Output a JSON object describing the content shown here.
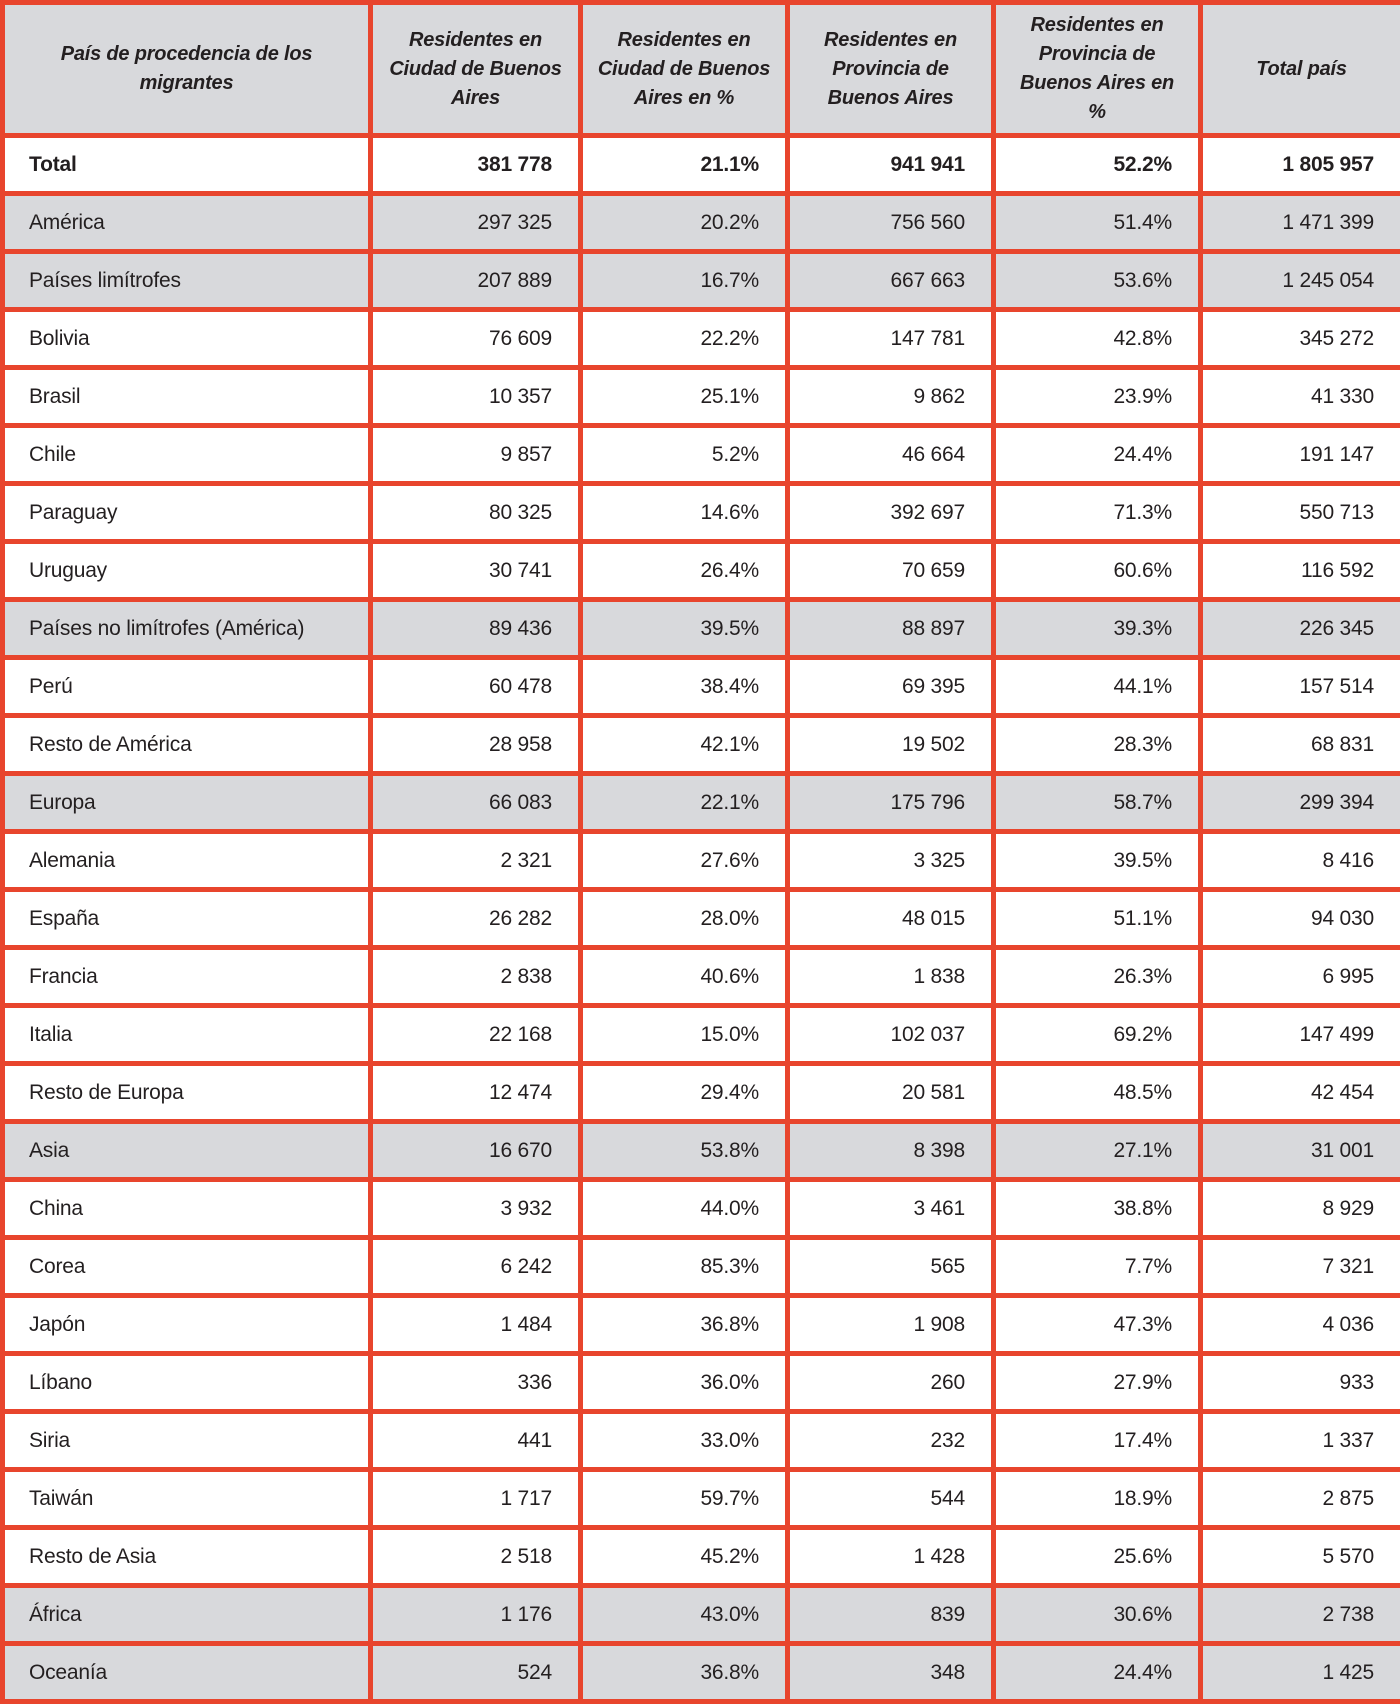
{
  "colors": {
    "border_red": "#e8452d",
    "row_gray": "#d8d9dc",
    "text": "#231f20"
  },
  "chart_data": {
    "type": "table",
    "columns": [
      "País de procedencia de los migrantes",
      "Residentes en Ciudad de Buenos Aires",
      "Residentes en Ciudad de Buenos Aires en %",
      "Residentes en Provincia de Buenos Aires",
      "Residentes en Provincia de Buenos Aires en %",
      "Total país"
    ],
    "rows": [
      {
        "label": "Total",
        "level": "total",
        "values": [
          "381 778",
          "21.1%",
          "941 941",
          "52.2%",
          "1 805 957"
        ]
      },
      {
        "label": "América",
        "level": "continent",
        "values": [
          "297 325",
          "20.2%",
          "756 560",
          "51.4%",
          "1 471 399"
        ]
      },
      {
        "label": "Países limítrofes",
        "level": "group",
        "values": [
          "207 889",
          "16.7%",
          "667 663",
          "53.6%",
          "1 245 054"
        ]
      },
      {
        "label": "Bolivia",
        "level": "country",
        "values": [
          "76 609",
          "22.2%",
          "147 781",
          "42.8%",
          "345 272"
        ]
      },
      {
        "label": "Brasil",
        "level": "country",
        "values": [
          "10 357",
          "25.1%",
          "9 862",
          "23.9%",
          "41 330"
        ]
      },
      {
        "label": "Chile",
        "level": "country",
        "values": [
          "9 857",
          "5.2%",
          "46 664",
          "24.4%",
          "191 147"
        ]
      },
      {
        "label": "Paraguay",
        "level": "country",
        "values": [
          "80 325",
          "14.6%",
          "392 697",
          "71.3%",
          "550 713"
        ]
      },
      {
        "label": "Uruguay",
        "level": "country",
        "values": [
          "30 741",
          "26.4%",
          "70 659",
          "60.6%",
          "116 592"
        ]
      },
      {
        "label": "Países no limítrofes (América)",
        "level": "group",
        "values": [
          "89 436",
          "39.5%",
          "88 897",
          "39.3%",
          "226 345"
        ]
      },
      {
        "label": "Perú",
        "level": "country",
        "values": [
          "60 478",
          "38.4%",
          "69 395",
          "44.1%",
          "157 514"
        ]
      },
      {
        "label": "Resto de América",
        "level": "country",
        "values": [
          "28 958",
          "42.1%",
          "19 502",
          "28.3%",
          "68 831"
        ]
      },
      {
        "label": "Europa",
        "level": "continent",
        "values": [
          "66 083",
          "22.1%",
          "175 796",
          "58.7%",
          "299 394"
        ]
      },
      {
        "label": "Alemania",
        "level": "country",
        "values": [
          "2 321",
          "27.6%",
          "3 325",
          "39.5%",
          "8 416"
        ]
      },
      {
        "label": "España",
        "level": "country",
        "values": [
          "26 282",
          "28.0%",
          "48 015",
          "51.1%",
          "94 030"
        ]
      },
      {
        "label": "Francia",
        "level": "country",
        "values": [
          "2 838",
          "40.6%",
          "1 838",
          "26.3%",
          "6 995"
        ]
      },
      {
        "label": "Italia",
        "level": "country",
        "values": [
          "22 168",
          "15.0%",
          "102 037",
          "69.2%",
          "147 499"
        ]
      },
      {
        "label": "Resto de Europa",
        "level": "country",
        "values": [
          "12 474",
          "29.4%",
          "20 581",
          "48.5%",
          "42 454"
        ]
      },
      {
        "label": "Asia",
        "level": "continent",
        "values": [
          "16 670",
          "53.8%",
          "8 398",
          "27.1%",
          "31 001"
        ]
      },
      {
        "label": "China",
        "level": "country",
        "values": [
          "3 932",
          "44.0%",
          "3 461",
          "38.8%",
          "8 929"
        ]
      },
      {
        "label": "Corea",
        "level": "country",
        "values": [
          "6 242",
          "85.3%",
          "565",
          "7.7%",
          "7 321"
        ]
      },
      {
        "label": "Japón",
        "level": "country",
        "values": [
          "1 484",
          "36.8%",
          "1 908",
          "47.3%",
          "4 036"
        ]
      },
      {
        "label": "Líbano",
        "level": "country",
        "values": [
          "336",
          "36.0%",
          "260",
          "27.9%",
          "933"
        ]
      },
      {
        "label": "Siria",
        "level": "country",
        "values": [
          "441",
          "33.0%",
          "232",
          "17.4%",
          "1 337"
        ]
      },
      {
        "label": "Taiwán",
        "level": "country",
        "values": [
          "1 717",
          "59.7%",
          "544",
          "18.9%",
          "2 875"
        ]
      },
      {
        "label": "Resto de Asia",
        "level": "country",
        "values": [
          "2 518",
          "45.2%",
          "1 428",
          "25.6%",
          "5 570"
        ]
      },
      {
        "label": "África",
        "level": "continent",
        "values": [
          "1 176",
          "43.0%",
          "839",
          "30.6%",
          "2 738"
        ]
      },
      {
        "label": "Oceanía",
        "level": "continent",
        "values": [
          "524",
          "36.8%",
          "348",
          "24.4%",
          "1 425"
        ]
      }
    ]
  }
}
